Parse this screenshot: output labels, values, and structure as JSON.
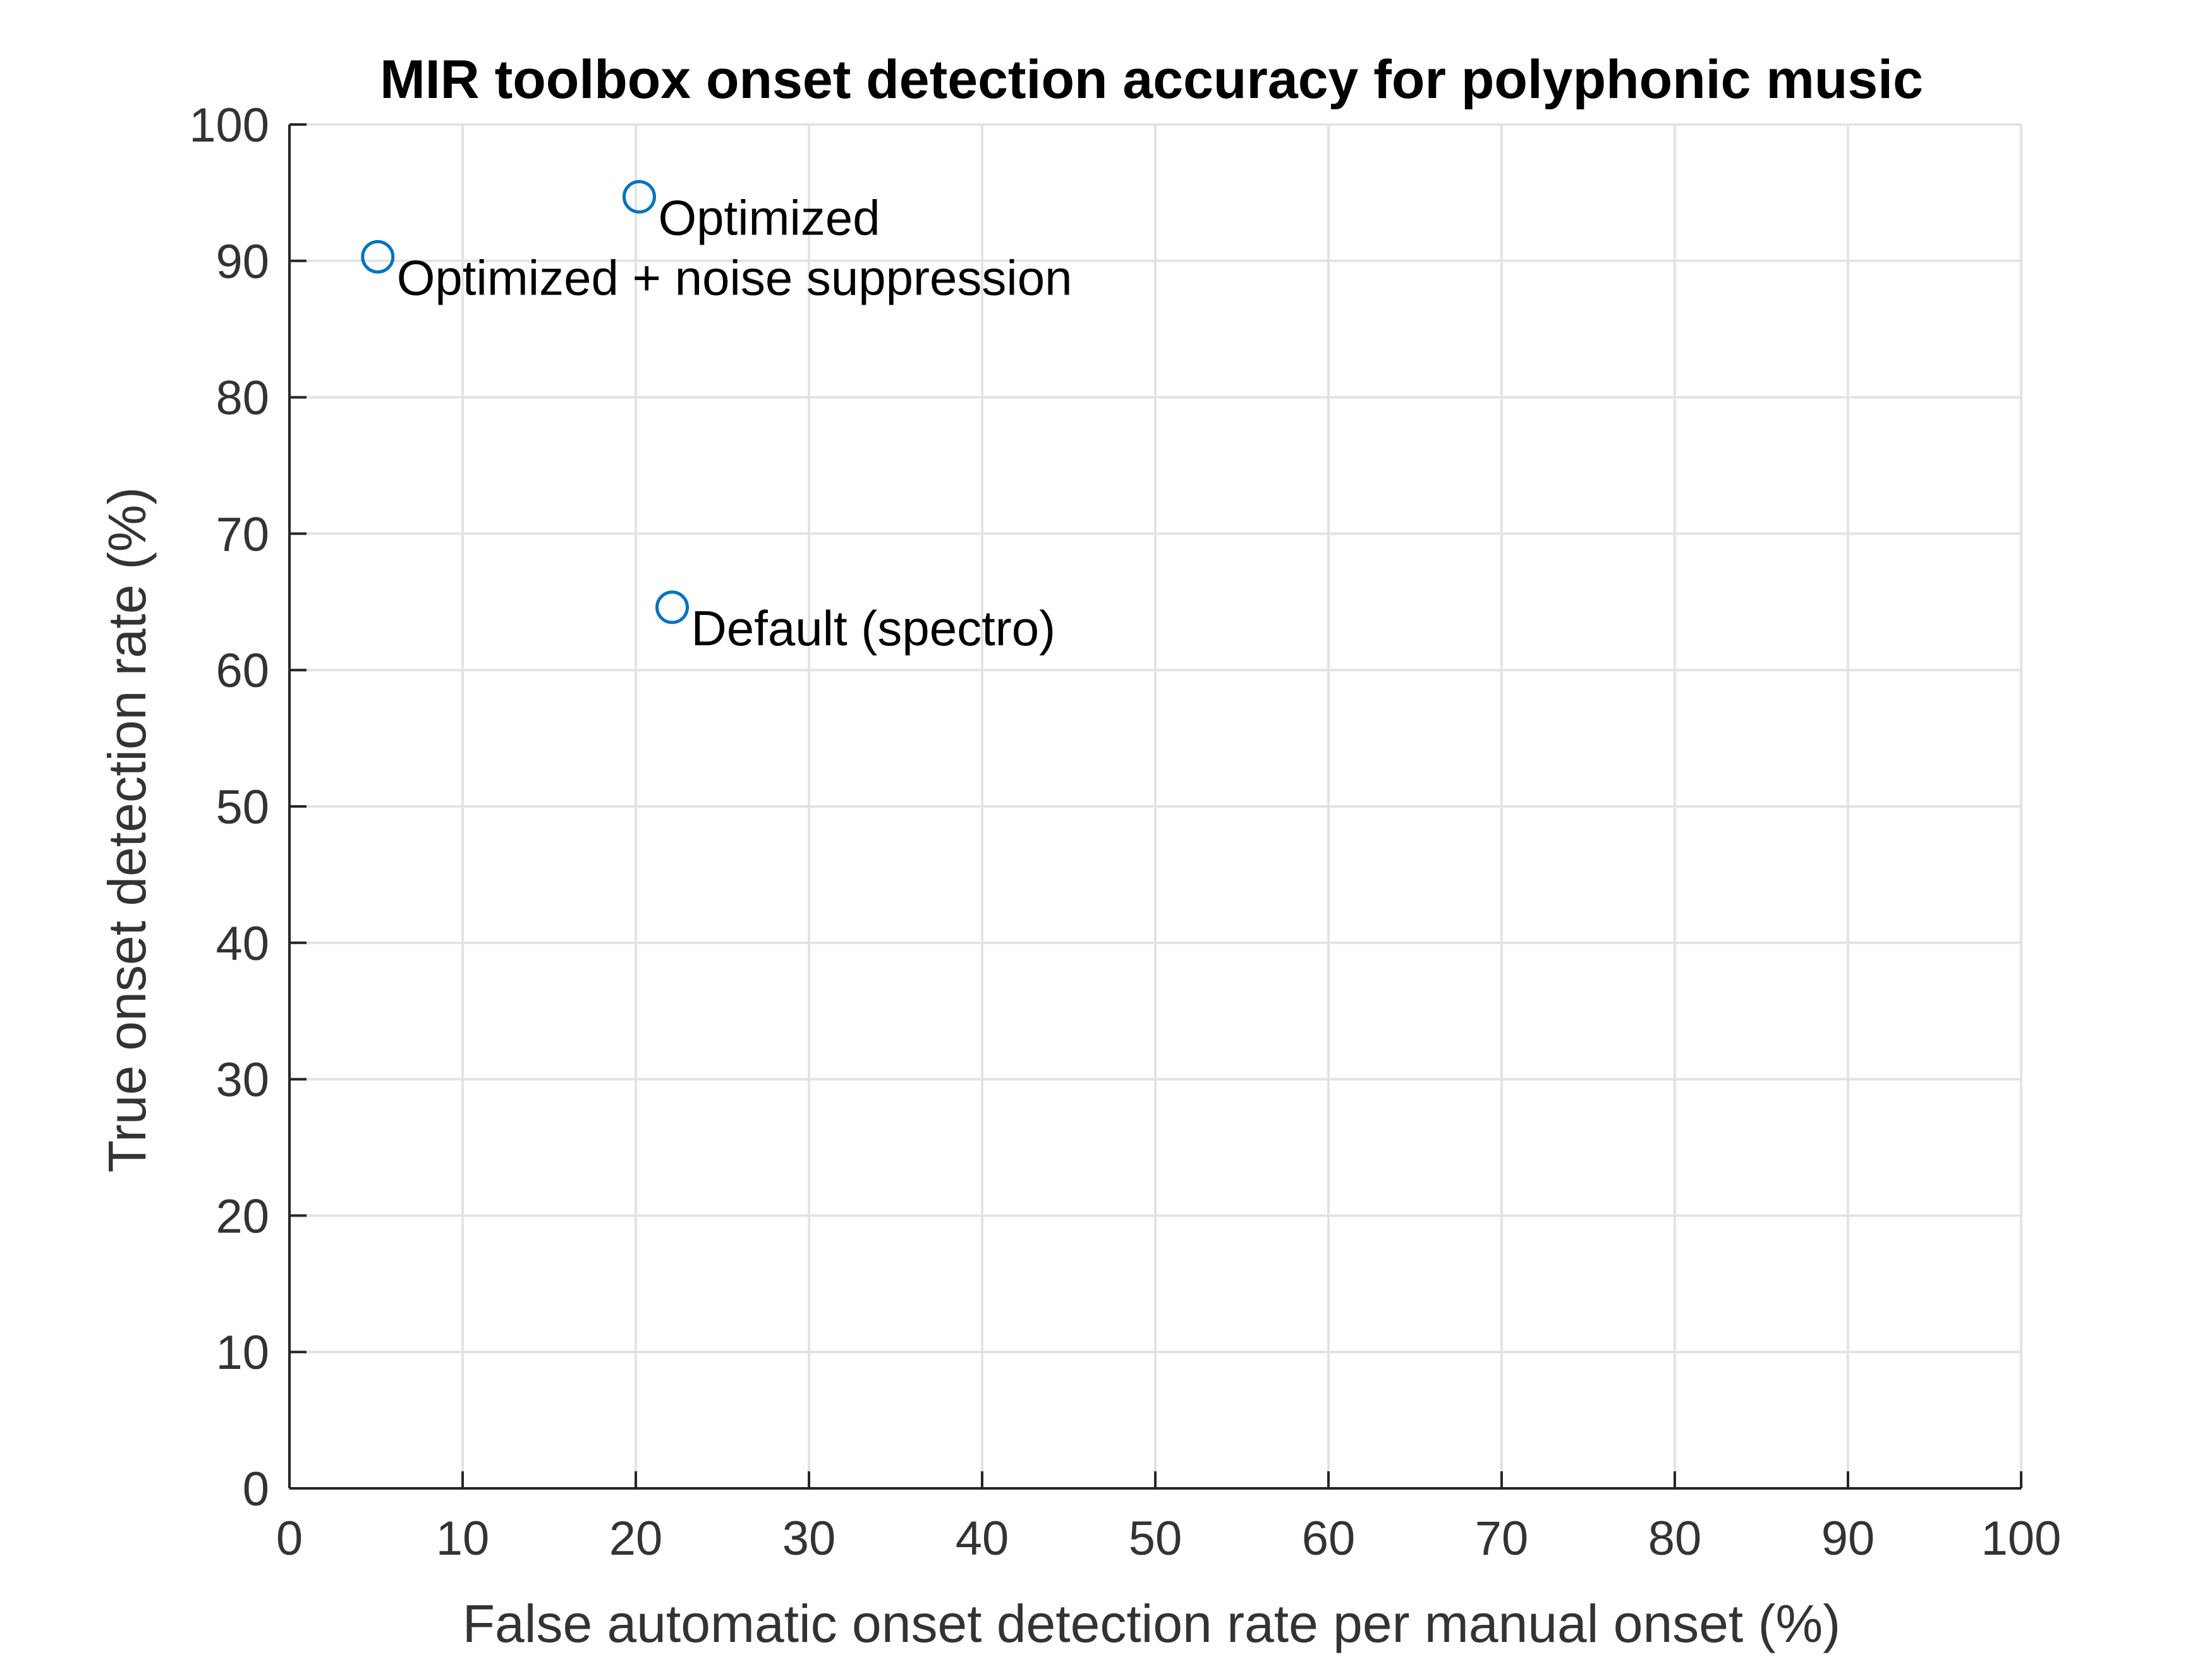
{
  "chart_data": {
    "type": "scatter",
    "title": "MIR toolbox onset detection accuracy for polyphonic music",
    "xlabel": "False automatic onset detection rate per manual onset (%)",
    "ylabel": "True onset detection rate (%)",
    "xlim": [
      0,
      100
    ],
    "ylim": [
      0,
      100
    ],
    "xticks": [
      "0",
      "10",
      "20",
      "30",
      "40",
      "50",
      "60",
      "70",
      "80",
      "90",
      "100"
    ],
    "yticks": [
      "0",
      "10",
      "20",
      "30",
      "40",
      "50",
      "60",
      "70",
      "80",
      "90",
      "100"
    ],
    "grid": true,
    "marker": "circle-open",
    "marker_color": "#0072bd",
    "points": [
      {
        "label": "Optimized",
        "x": 20.2,
        "y": 94.7
      },
      {
        "label": "Optimized + noise suppression",
        "x": 5.1,
        "y": 90.3
      },
      {
        "label": "Default (spectro)",
        "x": 22.1,
        "y": 64.6
      }
    ]
  }
}
